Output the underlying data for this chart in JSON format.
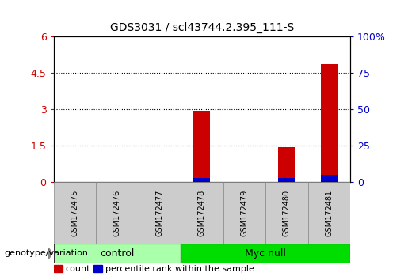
{
  "title": "GDS3031 / scl43744.2.395_111-S",
  "samples": [
    "GSM172475",
    "GSM172476",
    "GSM172477",
    "GSM172478",
    "GSM172479",
    "GSM172480",
    "GSM172481"
  ],
  "count_values": [
    0,
    0,
    0,
    2.95,
    0,
    1.45,
    4.85
  ],
  "percentile_values": [
    0,
    0,
    0,
    3,
    0,
    3,
    5
  ],
  "left_ylim": [
    0,
    6
  ],
  "left_yticks": [
    0,
    1.5,
    3,
    4.5,
    6
  ],
  "left_yticklabels": [
    "0",
    "1.5",
    "3",
    "4.5",
    "6"
  ],
  "right_ylim": [
    0,
    100
  ],
  "right_yticks": [
    0,
    25,
    50,
    75,
    100
  ],
  "right_yticklabels": [
    "0",
    "25",
    "50",
    "75",
    "100%"
  ],
  "left_tick_color": "#cc0000",
  "right_tick_color": "#0000cc",
  "bar_color_count": "#cc0000",
  "bar_color_percentile": "#0000cc",
  "groups": [
    {
      "label": "control",
      "start": 0,
      "end": 3,
      "color": "#aaffaa"
    },
    {
      "label": "Myc null",
      "start": 3,
      "end": 7,
      "color": "#00dd00"
    }
  ],
  "group_row_label": "genotype/variation",
  "legend_items": [
    {
      "color": "#cc0000",
      "label": "count"
    },
    {
      "color": "#0000cc",
      "label": "percentile rank within the sample"
    }
  ],
  "grid_yticks": [
    1.5,
    3,
    4.5
  ],
  "bar_width": 0.4,
  "sample_box_color": "#cccccc",
  "figsize": [
    5.2,
    3.54
  ],
  "dpi": 100
}
